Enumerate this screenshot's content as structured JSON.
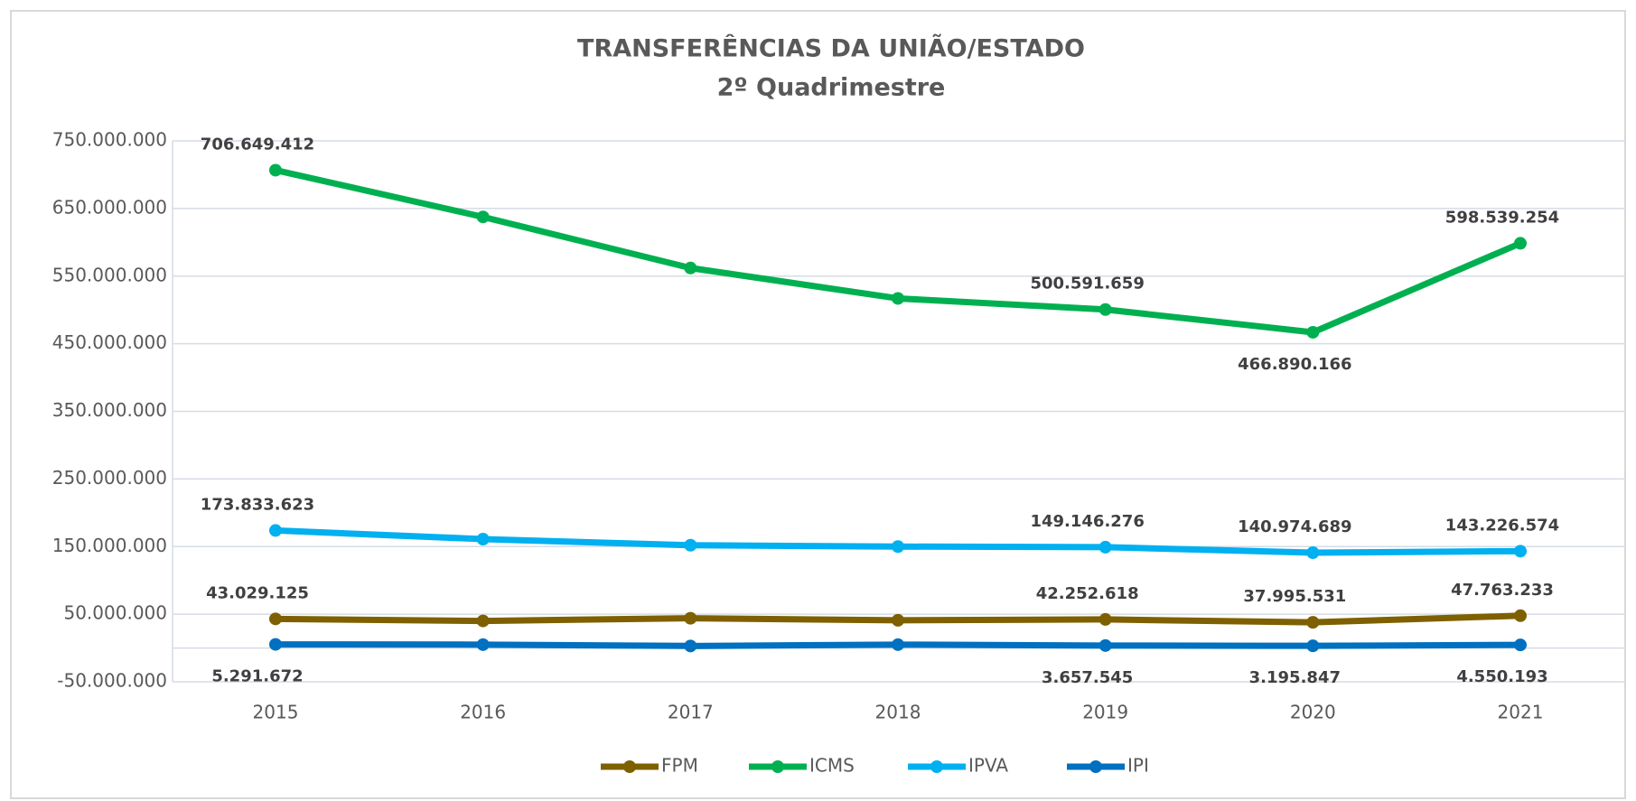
{
  "chart_data": {
    "type": "line",
    "title": "TRANSFERÊNCIAS DA UNIÃO/ESTADO",
    "subtitle": "2º Quadrimestre",
    "categories": [
      "2015",
      "2016",
      "2017",
      "2018",
      "2019",
      "2020",
      "2021"
    ],
    "series": [
      {
        "name": "FPM",
        "color": "#7f6000",
        "values": [
          43029125,
          40000000,
          44000000,
          41000000,
          42252618,
          37995531,
          47763233
        ],
        "value_labels": [
          "43.029.125",
          null,
          null,
          null,
          "42.252.618",
          "37.995.531",
          "47.763.233"
        ]
      },
      {
        "name": "ICMS",
        "color": "#00b050",
        "values": [
          706649412,
          637500000,
          562000000,
          517000000,
          500591659,
          466890166,
          598539254
        ],
        "value_labels": [
          "706.649.412",
          null,
          null,
          null,
          "500.591.659",
          "466.890.166",
          "598.539.254"
        ]
      },
      {
        "name": "IPVA",
        "color": "#00b0f0",
        "values": [
          173833623,
          161000000,
          152000000,
          150000000,
          149146276,
          140974689,
          143226574
        ],
        "value_labels": [
          "173.833.623",
          null,
          null,
          null,
          "149.146.276",
          "140.974.689",
          "143.226.574"
        ]
      },
      {
        "name": "IPI",
        "color": "#0070c0",
        "values": [
          5291672,
          5000000,
          3000000,
          5000000,
          3657545,
          3195847,
          4550193
        ],
        "value_labels": [
          "5.291.672",
          null,
          null,
          null,
          "3.657.545",
          "3.195.847",
          "4.550.193"
        ]
      }
    ],
    "ylim": [
      -50000000,
      750000000
    ],
    "yticks": [
      {
        "value": -50000000,
        "label": "-50.000.000"
      },
      {
        "value": 50000000,
        "label": "50.000.000"
      },
      {
        "value": 150000000,
        "label": "150.000.000"
      },
      {
        "value": 250000000,
        "label": "250.000.000"
      },
      {
        "value": 350000000,
        "label": "350.000.000"
      },
      {
        "value": 450000000,
        "label": "450.000.000"
      },
      {
        "value": 550000000,
        "label": "550.000.000"
      },
      {
        "value": 650000000,
        "label": "650.000.000"
      },
      {
        "value": 750000000,
        "label": "750.000.000"
      }
    ],
    "grid": true,
    "legend": "bottom"
  }
}
